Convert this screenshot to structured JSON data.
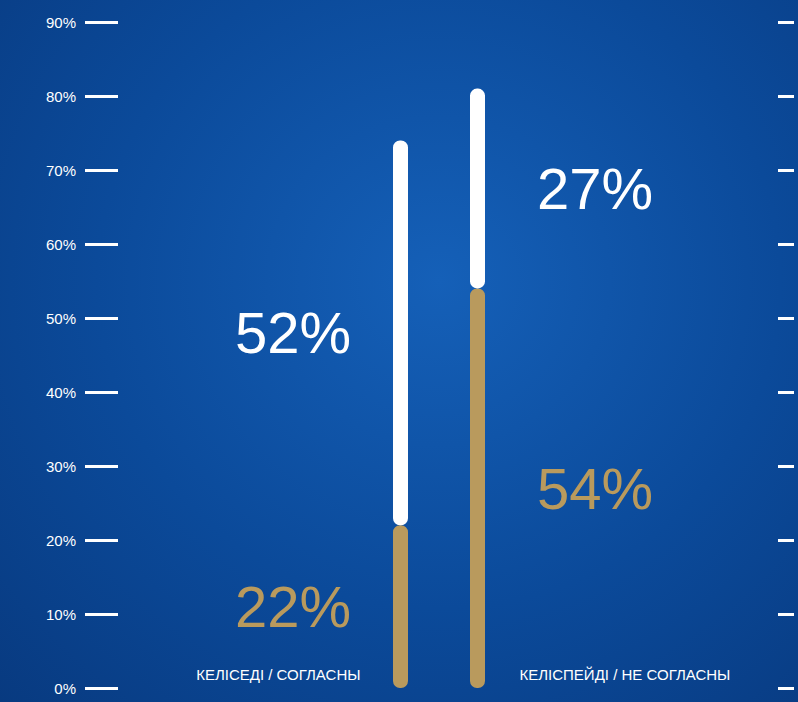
{
  "chart_data": {
    "type": "bar",
    "categories": [
      "КЕЛІСЕДІ / СОГЛАСНЫ",
      "КЕЛІСПЕЙДІ / НЕ СОГЛАСНЫ"
    ],
    "series": [
      {
        "color": "#b99a5d",
        "values": [
          22,
          54
        ],
        "value_labels": [
          "22%",
          "54%"
        ]
      },
      {
        "color": "#ffffff",
        "values": [
          52,
          27
        ],
        "value_labels": [
          "52%",
          "27%"
        ]
      }
    ],
    "stacked": true,
    "data_labels": true,
    "grid": false,
    "ylim": [
      0,
      90
    ],
    "yticks": [
      {
        "value": 0,
        "label": "0%"
      },
      {
        "value": 10,
        "label": "10%"
      },
      {
        "value": 20,
        "label": "20%"
      },
      {
        "value": 30,
        "label": "30%"
      },
      {
        "value": 40,
        "label": "40%"
      },
      {
        "value": 50,
        "label": "50%"
      },
      {
        "value": 60,
        "label": "60%"
      },
      {
        "value": 70,
        "label": "70%"
      },
      {
        "value": 80,
        "label": "80%"
      },
      {
        "value": 90,
        "label": "90%"
      }
    ]
  }
}
